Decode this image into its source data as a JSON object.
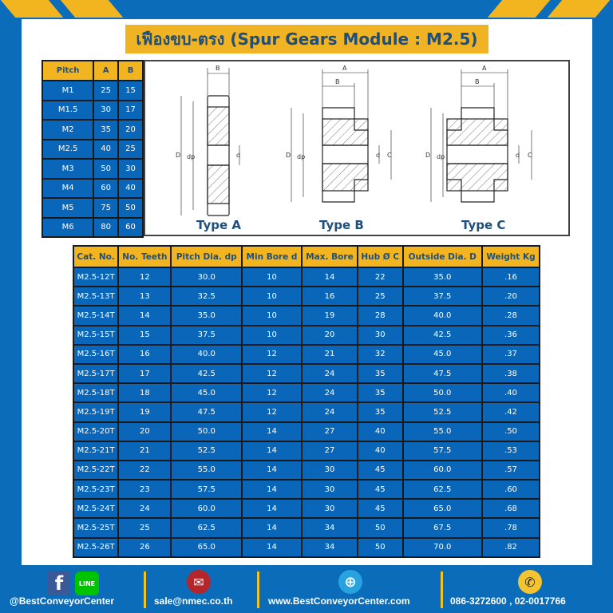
{
  "title": "เฟืองขบ-ตรง (Spur Gears Module : M2.5)",
  "pitch_table": {
    "headers": [
      "Pitch",
      "A",
      "B"
    ],
    "rows": [
      [
        "M1",
        "25",
        "15"
      ],
      [
        "M1.5",
        "30",
        "17"
      ],
      [
        "M2",
        "35",
        "20"
      ],
      [
        "M2.5",
        "40",
        "25"
      ],
      [
        "M3",
        "50",
        "30"
      ],
      [
        "M4",
        "60",
        "40"
      ],
      [
        "M5",
        "75",
        "50"
      ],
      [
        "M6",
        "80",
        "60"
      ]
    ]
  },
  "diagram": {
    "types": [
      "Type A",
      "Type B",
      "Type C"
    ],
    "dim_labels": {
      "A": "A",
      "B": "B",
      "C": "C",
      "D": "D",
      "dp": "dp",
      "d": "d"
    }
  },
  "main_table": {
    "headers": [
      "Cat. No.",
      "No. Teeth",
      "Pitch Dia. dp",
      "Min Bore d",
      "Max. Bore",
      "Hub Ø C",
      "Outside Dia. D",
      "Weight Kg"
    ],
    "rows": [
      [
        "M2.5-12T",
        "12",
        "30.0",
        "10",
        "14",
        "22",
        "35.0",
        ".16"
      ],
      [
        "M2.5-13T",
        "13",
        "32.5",
        "10",
        "16",
        "25",
        "37.5",
        ".20"
      ],
      [
        "M2.5-14T",
        "14",
        "35.0",
        "10",
        "19",
        "28",
        "40.0",
        ".28"
      ],
      [
        "M2.5-15T",
        "15",
        "37.5",
        "10",
        "20",
        "30",
        "42.5",
        ".36"
      ],
      [
        "M2.5-16T",
        "16",
        "40.0",
        "12",
        "21",
        "32",
        "45.0",
        ".37"
      ],
      [
        "M2.5-17T",
        "17",
        "42.5",
        "12",
        "24",
        "35",
        "47.5",
        ".38"
      ],
      [
        "M2.5-18T",
        "18",
        "45.0",
        "12",
        "24",
        "35",
        "50.0",
        ".40"
      ],
      [
        "M2.5-19T",
        "19",
        "47.5",
        "12",
        "24",
        "35",
        "52.5",
        ".42"
      ],
      [
        "M2.5-20T",
        "20",
        "50.0",
        "14",
        "27",
        "40",
        "55.0",
        ".50"
      ],
      [
        "M2.5-21T",
        "21",
        "52.5",
        "14",
        "27",
        "40",
        "57.5",
        ".53"
      ],
      [
        "M2.5-22T",
        "22",
        "55.0",
        "14",
        "30",
        "45",
        "60.0",
        ".57"
      ],
      [
        "M2.5-23T",
        "23",
        "57.5",
        "14",
        "30",
        "45",
        "62.5",
        ".60"
      ],
      [
        "M2.5-24T",
        "24",
        "60.0",
        "14",
        "30",
        "45",
        "65.0",
        ".68"
      ],
      [
        "M2.5-25T",
        "25",
        "62.5",
        "14",
        "34",
        "50",
        "67.5",
        ".78"
      ],
      [
        "M2.5-26T",
        "26",
        "65.0",
        "14",
        "34",
        "50",
        "70.0",
        ".82"
      ]
    ]
  },
  "footer": {
    "social": "@BestConveyorCenter",
    "email": "sale@nmec.co.th",
    "website": "www.BestConveyorCenter.com",
    "phone": "086-3272600 , 02-0017766",
    "line_label": "LINE",
    "fb_label": "f"
  },
  "colors": {
    "brand_blue": "#0b6cba",
    "accent_yellow": "#f2b51f",
    "title_text": "#1f4f7a"
  }
}
